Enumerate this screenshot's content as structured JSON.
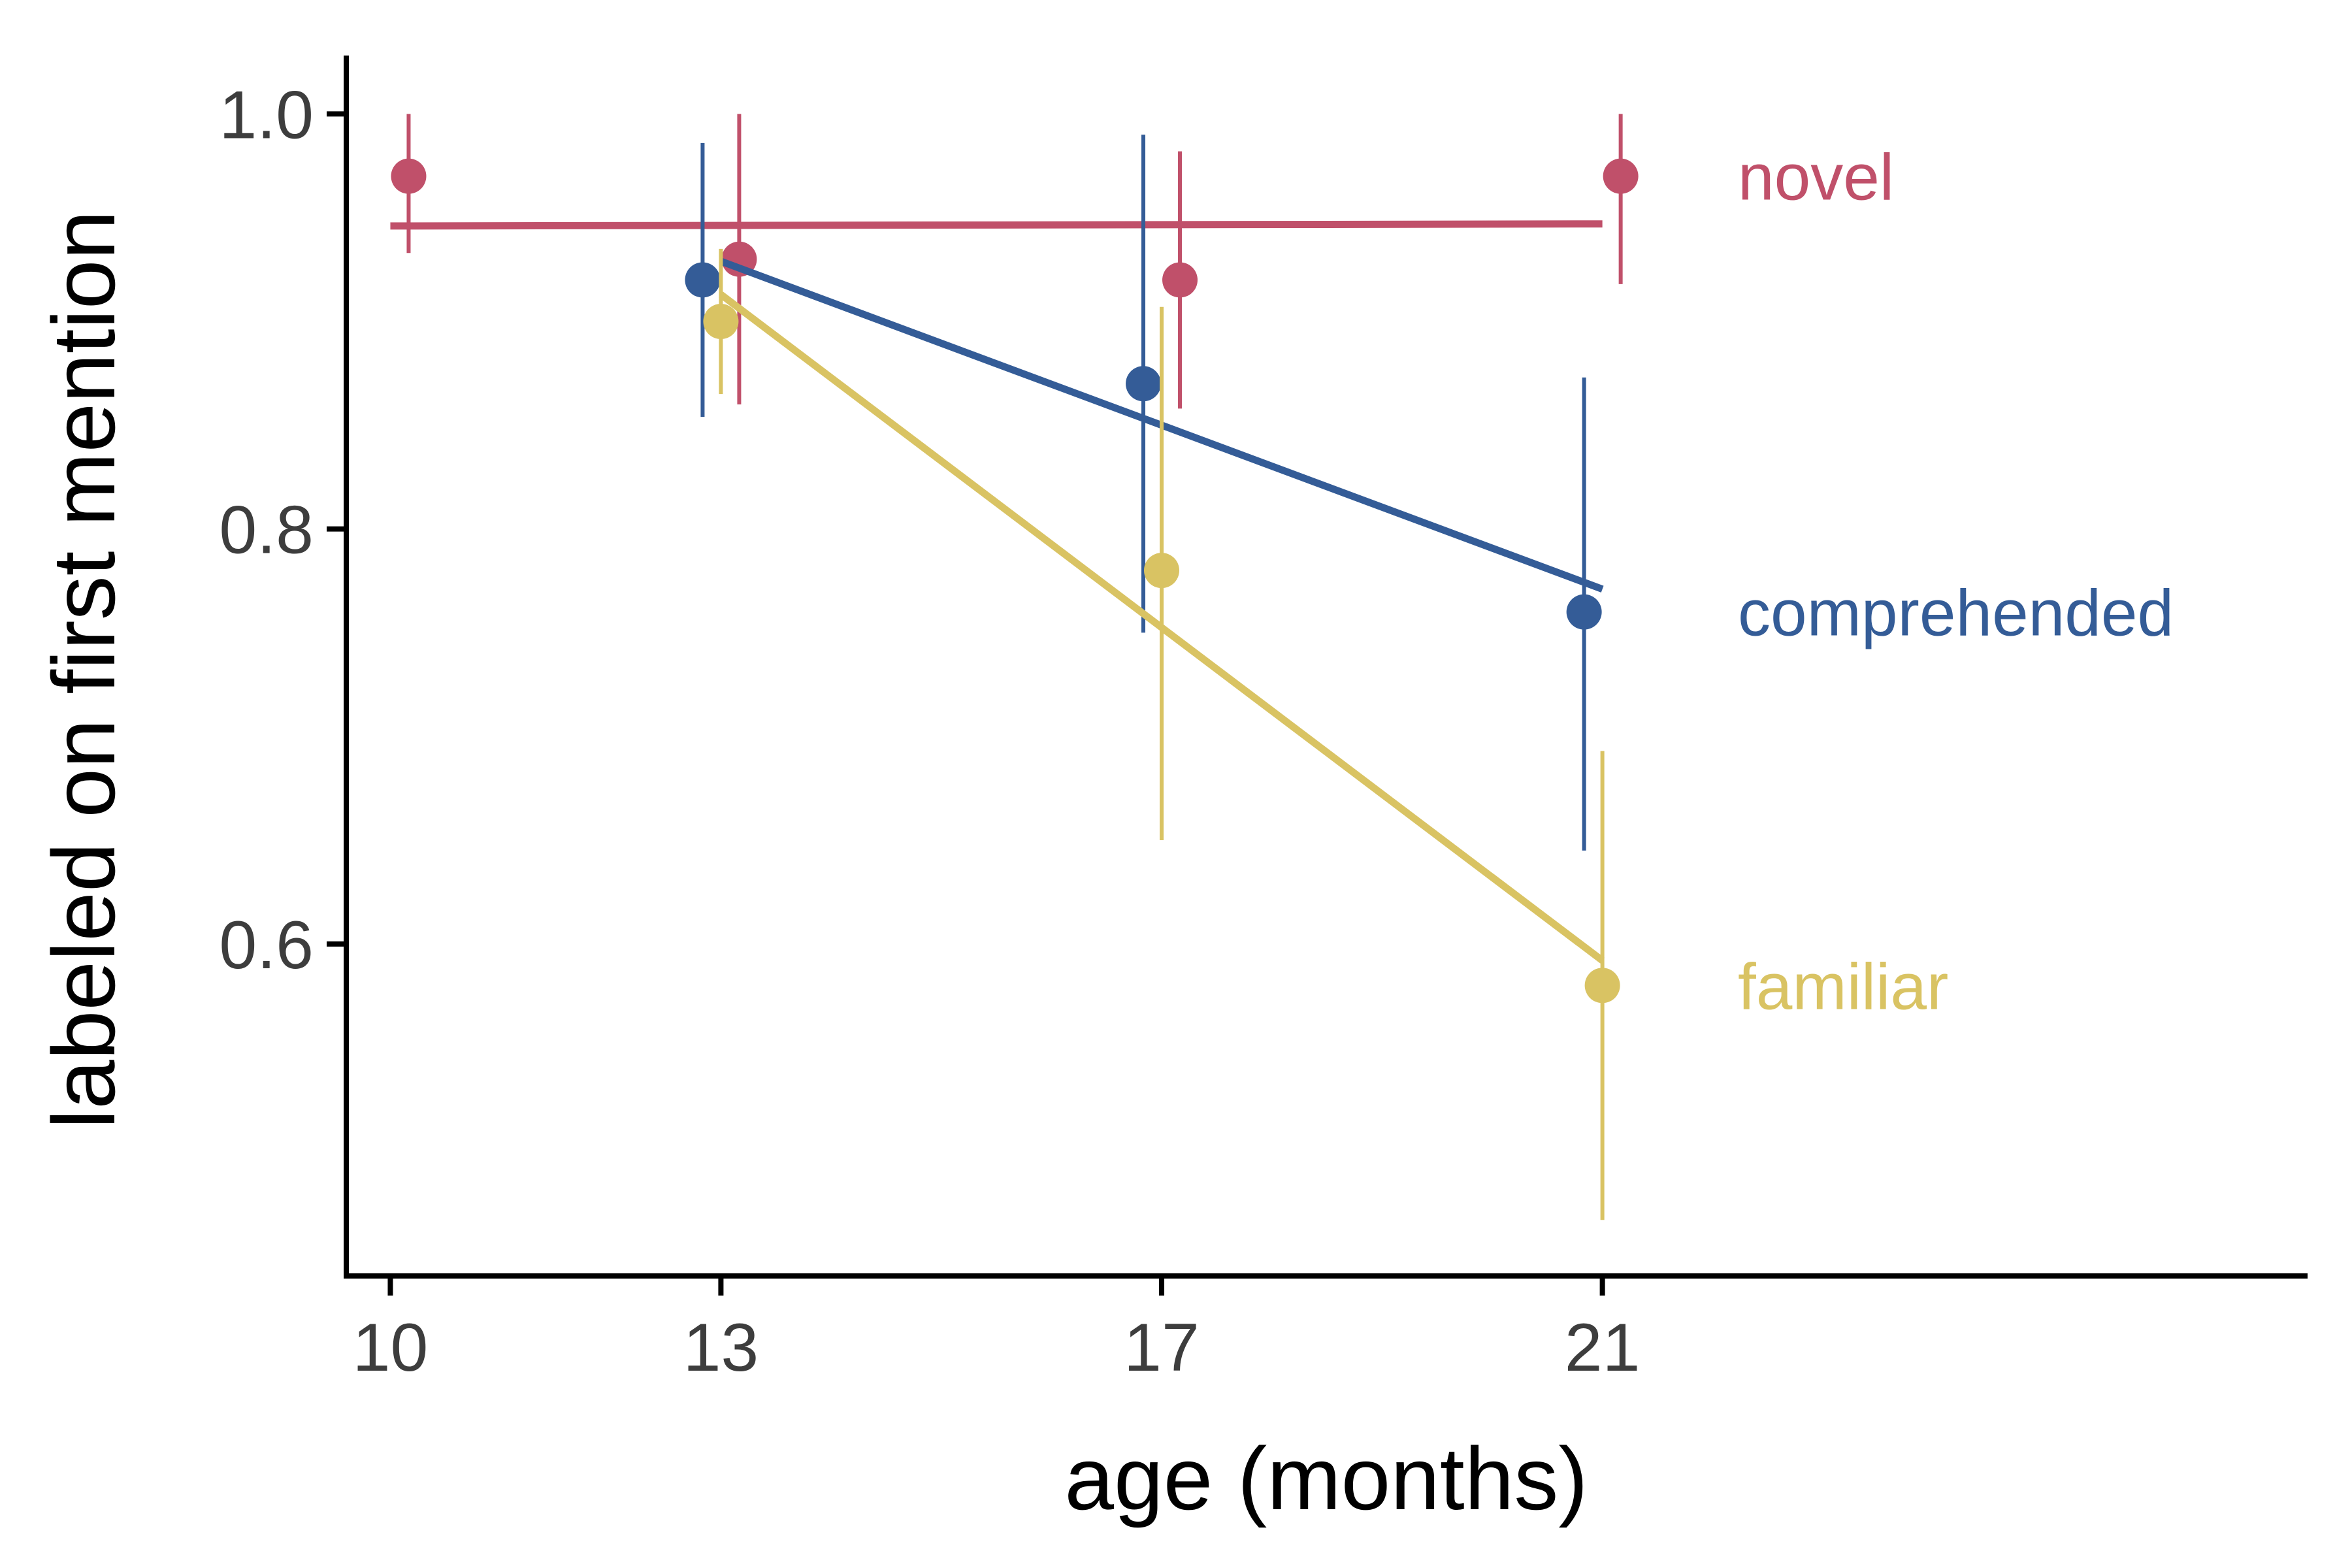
{
  "chart_data": {
    "type": "line",
    "title": "",
    "xlabel": "age (months)",
    "ylabel": "labeled on first mention",
    "xlim": [
      9.6,
      27.4
    ],
    "ylim": [
      0.44,
      1.025
    ],
    "x_ticks": [
      10,
      13,
      17,
      21
    ],
    "y_ticks": [
      0.6,
      0.8,
      1.0
    ],
    "x_tick_labels": [
      "10",
      "13",
      "17",
      "21"
    ],
    "y_tick_labels": [
      "0.6",
      "0.8",
      "1.0"
    ],
    "grid": false,
    "legend": "direct labels at right end of lines",
    "series": [
      {
        "name": "novel",
        "color": "#c0506a",
        "points": [
          {
            "x": 10,
            "y": 0.97,
            "ymin": 0.933,
            "ymax": 1.0
          },
          {
            "x": 13,
            "y": 0.93,
            "ymin": 0.86,
            "ymax": 1.0
          },
          {
            "x": 17,
            "y": 0.92,
            "ymin": 0.858,
            "ymax": 0.982
          },
          {
            "x": 21,
            "y": 0.97,
            "ymin": 0.918,
            "ymax": 1.0
          }
        ],
        "fit": {
          "x": [
            10,
            21
          ],
          "y": [
            0.946,
            0.947
          ]
        }
      },
      {
        "name": "comprehended",
        "color": "#345c97",
        "points": [
          {
            "x": 13,
            "y": 0.92,
            "ymin": 0.854,
            "ymax": 0.986
          },
          {
            "x": 17,
            "y": 0.87,
            "ymin": 0.75,
            "ymax": 0.99
          },
          {
            "x": 21,
            "y": 0.76,
            "ymin": 0.645,
            "ymax": 0.873
          }
        ],
        "fit": {
          "x": [
            13,
            21
          ],
          "y": [
            0.929,
            0.771
          ]
        }
      },
      {
        "name": "familiar",
        "color": "#d9c363",
        "points": [
          {
            "x": 13,
            "y": 0.9,
            "ymin": 0.865,
            "ymax": 0.935
          },
          {
            "x": 17,
            "y": 0.78,
            "ymin": 0.65,
            "ymax": 0.907
          },
          {
            "x": 21,
            "y": 0.58,
            "ymin": 0.467,
            "ymax": 0.693
          }
        ],
        "fit": {
          "x": [
            13,
            21
          ],
          "y": [
            0.913,
            0.592
          ]
        }
      }
    ]
  }
}
